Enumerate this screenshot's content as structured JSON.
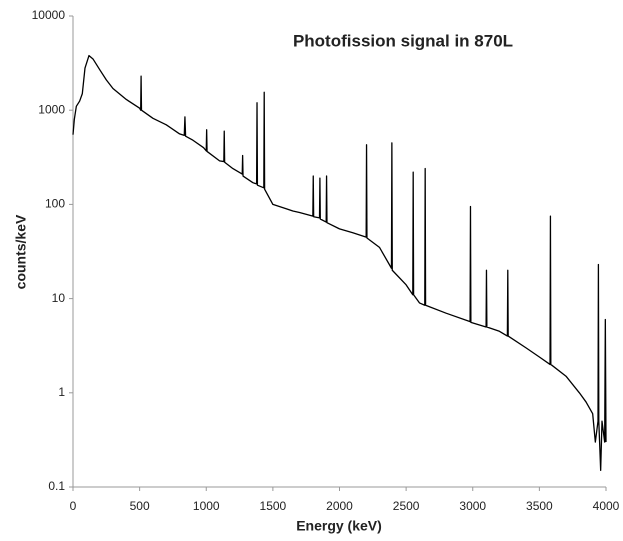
{
  "chart_data": {
    "type": "line",
    "title": "Photofission signal in 870L",
    "xlabel": "Energy (keV)",
    "ylabel": "counts/keV",
    "log_y": true,
    "grid": false,
    "color": "#000000",
    "xlim": [
      0,
      4000
    ],
    "xticks": [
      0,
      500,
      1000,
      1500,
      2000,
      2500,
      3000,
      3500,
      4000
    ],
    "ylim": [
      0.1,
      10000
    ],
    "yticks": [
      0.1,
      1,
      10,
      100,
      1000,
      10000
    ],
    "x": [
      0,
      10,
      25,
      50,
      70,
      90,
      120,
      150,
      200,
      250,
      300,
      400,
      500,
      508,
      511,
      514,
      600,
      700,
      800,
      835,
      840,
      845,
      900,
      980,
      1000,
      1003,
      1006,
      1100,
      1132,
      1135,
      1138,
      1200,
      1270,
      1273,
      1276,
      1350,
      1378,
      1381,
      1384,
      1432,
      1435,
      1438,
      1500,
      1600,
      1650,
      1700,
      1800,
      1803,
      1806,
      1850,
      1853,
      1856,
      1900,
      1903,
      1906,
      2000,
      2100,
      2200,
      2203,
      2206,
      2300,
      2390,
      2393,
      2396,
      2500,
      2550,
      2553,
      2556,
      2600,
      2640,
      2643,
      2646,
      2800,
      2980,
      2983,
      2986,
      3100,
      3103,
      3106,
      3200,
      3260,
      3263,
      3266,
      3400,
      3500,
      3580,
      3583,
      3586,
      3700,
      3800,
      3850,
      3900,
      3920,
      3940,
      3943,
      3946,
      3960,
      3970,
      3990,
      3995,
      4000
    ],
    "values": [
      550,
      800,
      1100,
      1250,
      1500,
      2800,
      3800,
      3500,
      2700,
      2100,
      1700,
      1300,
      1050,
      1000,
      2300,
      1000,
      820,
      700,
      560,
      540,
      850,
      530,
      480,
      400,
      370,
      620,
      365,
      290,
      285,
      600,
      280,
      240,
      210,
      330,
      200,
      170,
      165,
      1200,
      160,
      150,
      1550,
      145,
      100,
      90,
      85,
      82,
      75,
      200,
      74,
      72,
      190,
      70,
      65,
      200,
      64,
      55,
      50,
      45,
      430,
      44,
      35,
      21,
      450,
      20,
      14,
      11,
      220,
      11,
      9,
      8.5,
      240,
      8.5,
      7,
      5.7,
      95,
      5.6,
      5,
      20,
      5,
      4.5,
      4,
      20,
      4,
      3,
      2.4,
      2,
      75,
      2,
      1.5,
      1,
      0.8,
      0.6,
      0.3,
      0.5,
      23,
      0.5,
      0.15,
      0.5,
      0.3,
      6,
      0.3
    ]
  }
}
